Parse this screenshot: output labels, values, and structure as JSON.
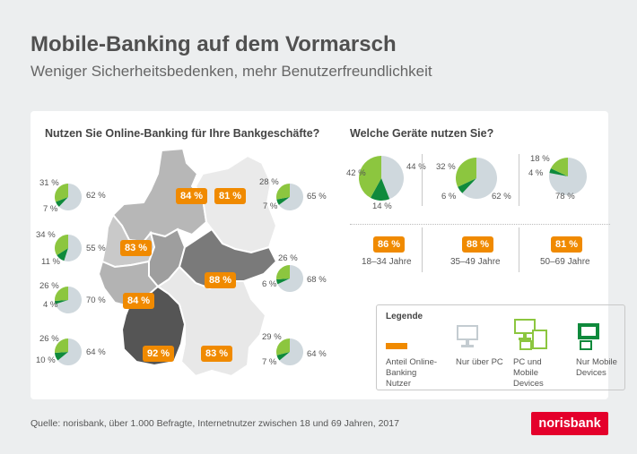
{
  "header": {
    "title": "Mobile-Banking auf dem Vormarsch",
    "subtitle": "Weniger Sicherheitsbedenken, mehr Benutzerfreundlichkeit"
  },
  "colors": {
    "orange": "#f08a00",
    "grey_pie": "#cfd8dd",
    "light_green": "#8cc63f",
    "dark_green": "#0f8a3c"
  },
  "chart_data": [
    {
      "type": "map",
      "title": "Nutzen Sie Online-Banking für Ihre Bankgeschäfte?",
      "regions": [
        {
          "label": "84 %",
          "value": 84
        },
        {
          "label": "81 %",
          "value": 81
        },
        {
          "label": "83 %",
          "value": 83
        },
        {
          "label": "88 %",
          "value": 88
        },
        {
          "label": "84 %",
          "value": 84
        },
        {
          "label": "92 %",
          "value": 92
        },
        {
          "label": "83 %",
          "value": 83
        }
      ],
      "pies": [
        {
          "pc": 62,
          "pc_mobile": 31,
          "mobile": 7,
          "pc_label": "62 %",
          "pc_mobile_label": "31 %",
          "mobile_label": "7 %"
        },
        {
          "pc": 55,
          "pc_mobile": 34,
          "mobile": 11,
          "pc_label": "55 %",
          "pc_mobile_label": "34 %",
          "mobile_label": "11 %"
        },
        {
          "pc": 70,
          "pc_mobile": 26,
          "mobile": 4,
          "pc_label": "70 %",
          "pc_mobile_label": "26 %",
          "mobile_label": "4 %"
        },
        {
          "pc": 64,
          "pc_mobile": 26,
          "mobile": 10,
          "pc_label": "64 %",
          "pc_mobile_label": "26 %",
          "mobile_label": "10 %"
        },
        {
          "pc": 65,
          "pc_mobile": 28,
          "mobile": 7,
          "pc_label": "65 %",
          "pc_mobile_label": "28 %",
          "mobile_label": "7 %"
        },
        {
          "pc": 68,
          "pc_mobile": 26,
          "mobile": 6,
          "pc_label": "68 %",
          "pc_mobile_label": "26 %",
          "mobile_label": "6 %"
        },
        {
          "pc": 64,
          "pc_mobile": 29,
          "mobile": 7,
          "pc_label": "64 %",
          "pc_mobile_label": "29 %",
          "mobile_label": "7 %"
        }
      ]
    },
    {
      "type": "pie",
      "title": "Welche Geräte nutzen Sie?",
      "groups": [
        {
          "age": "18–34 Jahre",
          "online_label": "86 %",
          "pc": 44,
          "pc_mobile": 42,
          "mobile": 14,
          "pc_label": "44 %",
          "pc_mobile_label": "42 %",
          "mobile_label": "14 %"
        },
        {
          "age": "35–49 Jahre",
          "online_label": "88 %",
          "pc": 62,
          "pc_mobile": 32,
          "mobile": 6,
          "pc_label": "62 %",
          "pc_mobile_label": "32 %",
          "mobile_label": "6 %"
        },
        {
          "age": "50–69 Jahre",
          "online_label": "81 %",
          "pc": 78,
          "pc_mobile": 18,
          "mobile": 4,
          "pc_label": "78 %",
          "pc_mobile_label": "18 %",
          "mobile_label": "4 %"
        }
      ]
    }
  ],
  "legend": {
    "title": "Legende",
    "items": [
      {
        "label": "Anteil Online-Banking Nutzer"
      },
      {
        "label": "Nur über PC"
      },
      {
        "label": "PC und Mobile Devices"
      },
      {
        "label": "Nur Mobile Devices"
      }
    ]
  },
  "footer": {
    "source": "Quelle: norisbank,  über 1.000 Befragte, Internetnutzer zwischen 18 und 69 Jahren, 2017"
  },
  "brand": {
    "logo_text": "norisbank"
  }
}
